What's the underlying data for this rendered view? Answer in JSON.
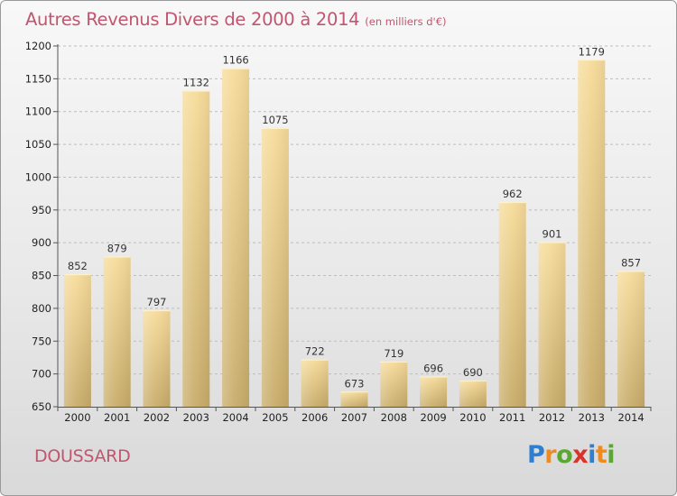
{
  "title": "Autres Revenus Divers de 2000 à 2014",
  "unit": "(en milliers d'€)",
  "commune": "DOUSSARD",
  "logo": {
    "text": "Proxiti",
    "letters": [
      {
        "ch": "P",
        "color": "#2f7fd0"
      },
      {
        "ch": "r",
        "color": "#f08a1c"
      },
      {
        "ch": "o",
        "color": "#5aa832"
      },
      {
        "ch": "x",
        "color": "#d8342b"
      },
      {
        "ch": "i",
        "color": "#2f7fd0"
      },
      {
        "ch": "t",
        "color": "#f08a1c"
      },
      {
        "ch": "i",
        "color": "#5aa832"
      }
    ]
  },
  "colors": {
    "title": "#c05670",
    "bar_light": "#f7dc9a",
    "bar_dark": "#c8ac6a",
    "grid": "#bdbdbd"
  },
  "chart_data": {
    "type": "bar",
    "categories": [
      "2000",
      "2001",
      "2002",
      "2003",
      "2004",
      "2005",
      "2006",
      "2007",
      "2008",
      "2009",
      "2010",
      "2011",
      "2012",
      "2013",
      "2014"
    ],
    "values": [
      852,
      879,
      797,
      1132,
      1166,
      1075,
      722,
      673,
      719,
      696,
      690,
      962,
      901,
      1179,
      857
    ],
    "ylim": [
      650,
      1200
    ],
    "yticks": [
      650,
      700,
      750,
      800,
      850,
      900,
      950,
      1000,
      1050,
      1100,
      1150,
      1200
    ],
    "grid": true
  }
}
